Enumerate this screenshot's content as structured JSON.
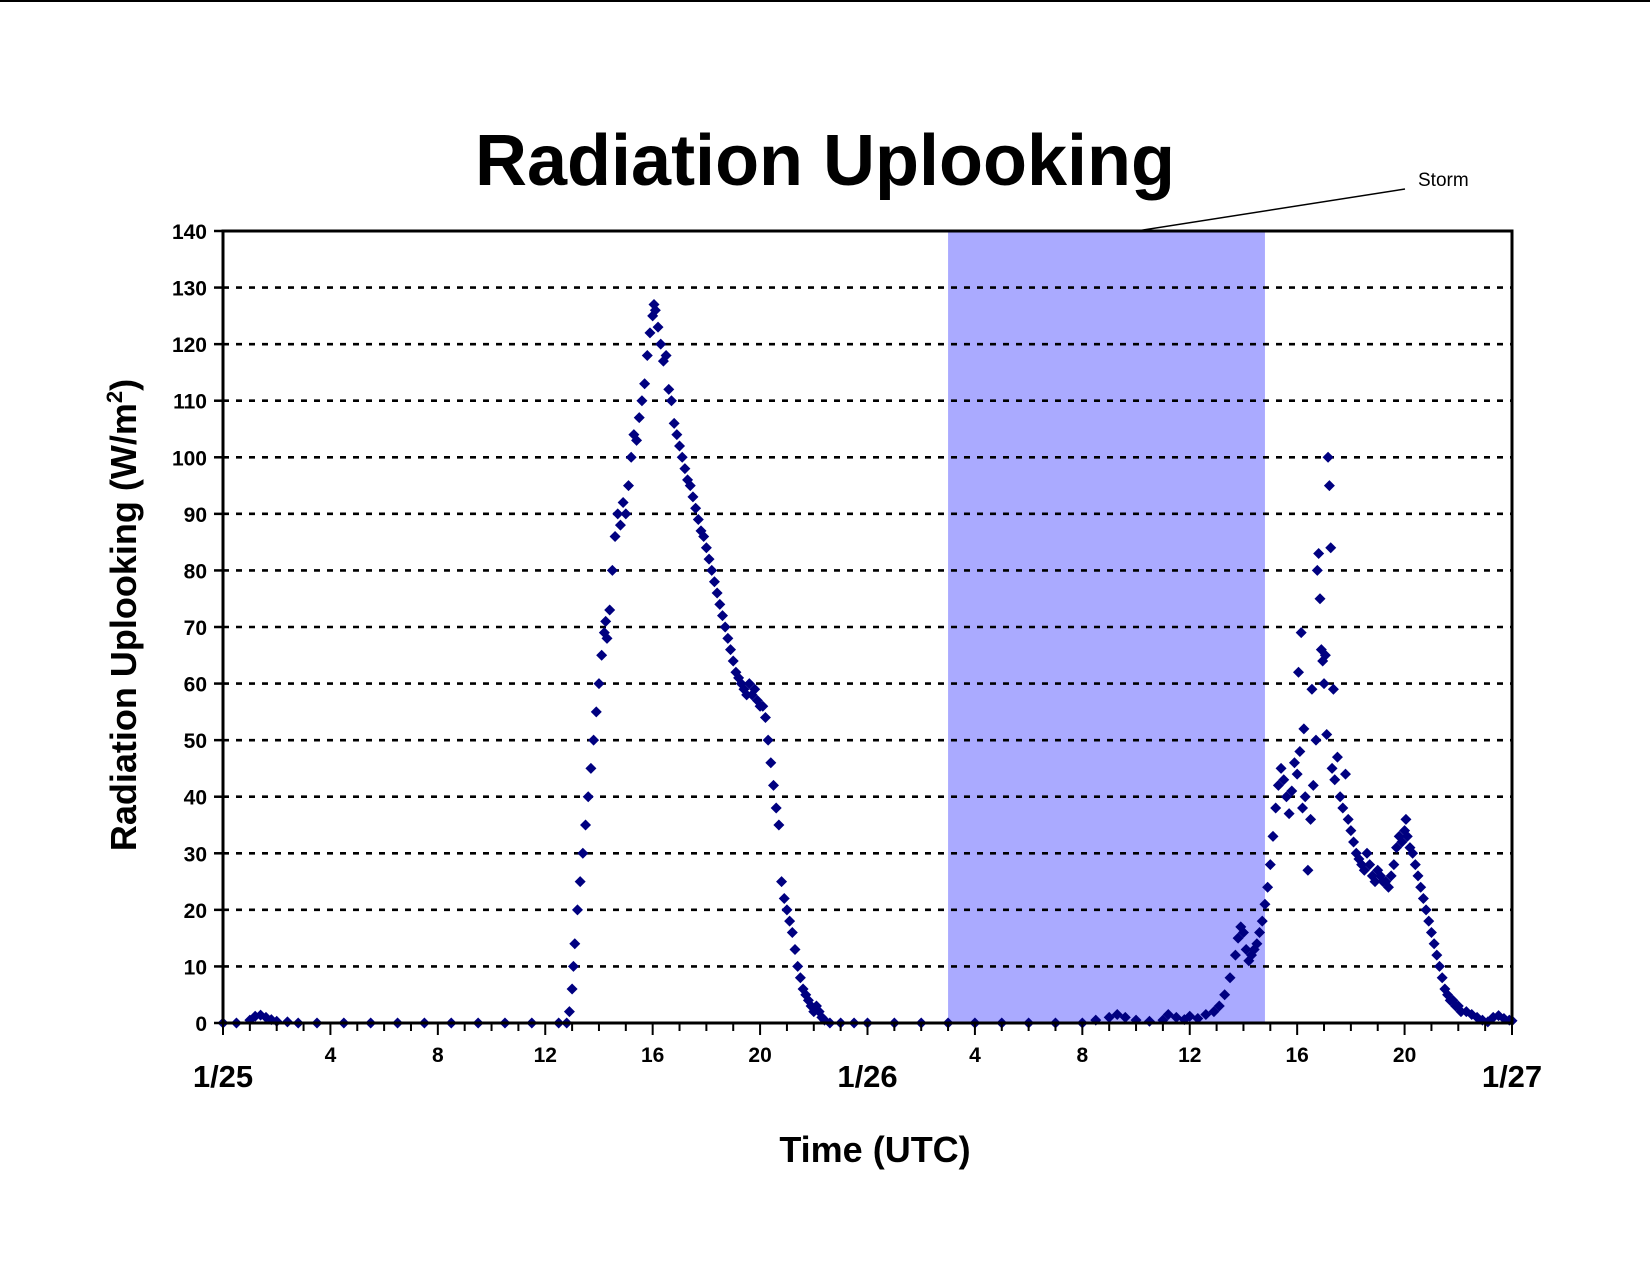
{
  "chart_data": {
    "type": "scatter",
    "title": "Radiation Uplooking",
    "xlabel": "Time (UTC)",
    "ylabel": "Radiation Uplooking (W/m",
    "ylabel_superscript": "2",
    "ylabel_close": ")",
    "x_unit": "hours since 1/25 00:00 UTC",
    "xlim": [
      0,
      48
    ],
    "ylim": [
      0,
      140
    ],
    "y_ticks": [
      0,
      10,
      20,
      30,
      40,
      50,
      60,
      70,
      80,
      90,
      100,
      110,
      120,
      130,
      140
    ],
    "x_hour_ticks": [
      {
        "x": 4,
        "label": "4"
      },
      {
        "x": 8,
        "label": "8"
      },
      {
        "x": 12,
        "label": "12"
      },
      {
        "x": 16,
        "label": "16"
      },
      {
        "x": 20,
        "label": "20"
      },
      {
        "x": 28,
        "label": "4"
      },
      {
        "x": 32,
        "label": "8"
      },
      {
        "x": 36,
        "label": "12"
      },
      {
        "x": 40,
        "label": "16"
      },
      {
        "x": 44,
        "label": "20"
      }
    ],
    "x_date_labels": [
      {
        "x": 0,
        "label": "1/25"
      },
      {
        "x": 24,
        "label": "1/26"
      },
      {
        "x": 48,
        "label": "1/27"
      }
    ],
    "grid": {
      "horizontal": true,
      "style": "dotted"
    },
    "shaded_region": {
      "label": "Storm",
      "x_start": 27.0,
      "x_end": 38.8,
      "color": "#aaaaff"
    },
    "marker_color": "#000080",
    "series": [
      {
        "points": [
          [
            0.0,
            0
          ],
          [
            0.5,
            0
          ],
          [
            1.0,
            0.5
          ],
          [
            1.2,
            1.2
          ],
          [
            1.4,
            1.4
          ],
          [
            1.6,
            1.0
          ],
          [
            1.8,
            0.6
          ],
          [
            2.0,
            0.3
          ],
          [
            2.4,
            0.2
          ],
          [
            2.8,
            0
          ],
          [
            3.5,
            0
          ],
          [
            4.5,
            0
          ],
          [
            5.5,
            0
          ],
          [
            6.5,
            0
          ],
          [
            7.5,
            0
          ],
          [
            8.5,
            0
          ],
          [
            9.5,
            0
          ],
          [
            10.5,
            0
          ],
          [
            11.5,
            0
          ],
          [
            12.5,
            0
          ],
          [
            12.8,
            0
          ],
          [
            12.9,
            2
          ],
          [
            13.0,
            6
          ],
          [
            13.05,
            10
          ],
          [
            13.1,
            14
          ],
          [
            13.2,
            20
          ],
          [
            13.3,
            25
          ],
          [
            13.4,
            30
          ],
          [
            13.5,
            35
          ],
          [
            13.6,
            40
          ],
          [
            13.7,
            45
          ],
          [
            13.8,
            50
          ],
          [
            13.9,
            55
          ],
          [
            14.0,
            60
          ],
          [
            14.1,
            65
          ],
          [
            14.2,
            69
          ],
          [
            14.25,
            71
          ],
          [
            14.3,
            68
          ],
          [
            14.4,
            73
          ],
          [
            14.5,
            80
          ],
          [
            14.6,
            86
          ],
          [
            14.7,
            90
          ],
          [
            14.8,
            88
          ],
          [
            14.9,
            92
          ],
          [
            15.0,
            90
          ],
          [
            15.1,
            95
          ],
          [
            15.2,
            100
          ],
          [
            15.3,
            104
          ],
          [
            15.4,
            103
          ],
          [
            15.5,
            107
          ],
          [
            15.6,
            110
          ],
          [
            15.7,
            113
          ],
          [
            15.8,
            118
          ],
          [
            15.9,
            122
          ],
          [
            16.0,
            125
          ],
          [
            16.05,
            127
          ],
          [
            16.1,
            126
          ],
          [
            16.2,
            123
          ],
          [
            16.3,
            120
          ],
          [
            16.4,
            117
          ],
          [
            16.5,
            118
          ],
          [
            16.6,
            112
          ],
          [
            16.7,
            110
          ],
          [
            16.8,
            106
          ],
          [
            16.9,
            104
          ],
          [
            17.0,
            102
          ],
          [
            17.1,
            100
          ],
          [
            17.2,
            98
          ],
          [
            17.3,
            96
          ],
          [
            17.4,
            95
          ],
          [
            17.5,
            93
          ],
          [
            17.6,
            91
          ],
          [
            17.7,
            89
          ],
          [
            17.8,
            87
          ],
          [
            17.9,
            86
          ],
          [
            18.0,
            84
          ],
          [
            18.1,
            82
          ],
          [
            18.2,
            80
          ],
          [
            18.3,
            78
          ],
          [
            18.4,
            76
          ],
          [
            18.5,
            74
          ],
          [
            18.6,
            72
          ],
          [
            18.7,
            70
          ],
          [
            18.8,
            68
          ],
          [
            18.9,
            66
          ],
          [
            19.0,
            64
          ],
          [
            19.1,
            62
          ],
          [
            19.2,
            61
          ],
          [
            19.3,
            60
          ],
          [
            19.4,
            59
          ],
          [
            19.5,
            58
          ],
          [
            19.6,
            60
          ],
          [
            19.7,
            58
          ],
          [
            19.8,
            59
          ],
          [
            19.9,
            57
          ],
          [
            20.0,
            56
          ],
          [
            20.1,
            56
          ],
          [
            20.2,
            54
          ],
          [
            20.3,
            50
          ],
          [
            20.4,
            46
          ],
          [
            20.5,
            42
          ],
          [
            20.6,
            38
          ],
          [
            20.7,
            35
          ],
          [
            20.8,
            25
          ],
          [
            20.9,
            22
          ],
          [
            21.0,
            20
          ],
          [
            21.1,
            18
          ],
          [
            21.2,
            16
          ],
          [
            21.3,
            13
          ],
          [
            21.4,
            10
          ],
          [
            21.5,
            8
          ],
          [
            21.6,
            6
          ],
          [
            21.7,
            5
          ],
          [
            21.8,
            4
          ],
          [
            21.9,
            3
          ],
          [
            22.0,
            2
          ],
          [
            22.1,
            3
          ],
          [
            22.2,
            2
          ],
          [
            22.3,
            1
          ],
          [
            22.4,
            0.5
          ],
          [
            22.6,
            0
          ],
          [
            23.0,
            0
          ],
          [
            23.5,
            0
          ],
          [
            24.0,
            0
          ],
          [
            25.0,
            0
          ],
          [
            26.0,
            0
          ],
          [
            27.0,
            0
          ],
          [
            28.0,
            0
          ],
          [
            29.0,
            0
          ],
          [
            30.0,
            0
          ],
          [
            31.0,
            0
          ],
          [
            32.0,
            0
          ],
          [
            32.5,
            0.5
          ],
          [
            33.0,
            1.0
          ],
          [
            33.3,
            1.5
          ],
          [
            33.6,
            1.0
          ],
          [
            34.0,
            0.5
          ],
          [
            34.5,
            0.3
          ],
          [
            35.0,
            0.5
          ],
          [
            35.2,
            1.5
          ],
          [
            35.5,
            1.0
          ],
          [
            35.8,
            0.6
          ],
          [
            36.0,
            1.2
          ],
          [
            36.3,
            0.8
          ],
          [
            36.6,
            1.5
          ],
          [
            36.9,
            2.0
          ],
          [
            37.1,
            3.0
          ],
          [
            37.3,
            5.0
          ],
          [
            37.5,
            8.0
          ],
          [
            37.7,
            12.0
          ],
          [
            37.8,
            15.0
          ],
          [
            37.9,
            17.0
          ],
          [
            38.0,
            16.0
          ],
          [
            38.1,
            13.0
          ],
          [
            38.2,
            11.0
          ],
          [
            38.3,
            12.0
          ],
          [
            38.4,
            13.0
          ],
          [
            38.5,
            14.0
          ],
          [
            38.6,
            16.0
          ],
          [
            38.7,
            18.0
          ],
          [
            38.8,
            21.0
          ],
          [
            38.9,
            24.0
          ],
          [
            39.0,
            28.0
          ],
          [
            39.1,
            33.0
          ],
          [
            39.2,
            38.0
          ],
          [
            39.3,
            42.0
          ],
          [
            39.4,
            45.0
          ],
          [
            39.5,
            43.0
          ],
          [
            39.6,
            40.0
          ],
          [
            39.7,
            37.0
          ],
          [
            39.8,
            41.0
          ],
          [
            39.9,
            46.0
          ],
          [
            40.0,
            44.0
          ],
          [
            40.05,
            62.0
          ],
          [
            40.1,
            48.0
          ],
          [
            40.15,
            69.0
          ],
          [
            40.2,
            38.0
          ],
          [
            40.25,
            52.0
          ],
          [
            40.3,
            40.0
          ],
          [
            40.4,
            27.0
          ],
          [
            40.5,
            36.0
          ],
          [
            40.55,
            59.0
          ],
          [
            40.6,
            42.0
          ],
          [
            40.7,
            50.0
          ],
          [
            40.75,
            80.0
          ],
          [
            40.8,
            83.0
          ],
          [
            40.85,
            75.0
          ],
          [
            40.9,
            66.0
          ],
          [
            40.95,
            64.0
          ],
          [
            41.0,
            60.0
          ],
          [
            41.05,
            65.0
          ],
          [
            41.1,
            51.0
          ],
          [
            41.15,
            100.0
          ],
          [
            41.2,
            95.0
          ],
          [
            41.25,
            84.0
          ],
          [
            41.3,
            45.0
          ],
          [
            41.35,
            59.0
          ],
          [
            41.4,
            43.0
          ],
          [
            41.5,
            47.0
          ],
          [
            41.6,
            40.0
          ],
          [
            41.7,
            38.0
          ],
          [
            41.8,
            44.0
          ],
          [
            41.9,
            36.0
          ],
          [
            42.0,
            34.0
          ],
          [
            42.1,
            32.0
          ],
          [
            42.2,
            30.0
          ],
          [
            42.3,
            29.0
          ],
          [
            42.4,
            28.0
          ],
          [
            42.5,
            27.0
          ],
          [
            42.6,
            30.0
          ],
          [
            42.7,
            28.0
          ],
          [
            42.8,
            26.0
          ],
          [
            42.9,
            25.0
          ],
          [
            43.0,
            27.0
          ],
          [
            43.1,
            26.0
          ],
          [
            43.2,
            25.0
          ],
          [
            43.3,
            25.0
          ],
          [
            43.4,
            24.0
          ],
          [
            43.5,
            26.0
          ],
          [
            43.6,
            28.0
          ],
          [
            43.7,
            31.0
          ],
          [
            43.8,
            33.0
          ],
          [
            43.9,
            32.0
          ],
          [
            44.0,
            34.0
          ],
          [
            44.05,
            36.0
          ],
          [
            44.1,
            33.0
          ],
          [
            44.2,
            31.0
          ],
          [
            44.3,
            30.0
          ],
          [
            44.4,
            28.0
          ],
          [
            44.5,
            26.0
          ],
          [
            44.6,
            24.0
          ],
          [
            44.7,
            22.0
          ],
          [
            44.8,
            20.0
          ],
          [
            44.9,
            18.0
          ],
          [
            45.0,
            16.0
          ],
          [
            45.1,
            14.0
          ],
          [
            45.2,
            12.0
          ],
          [
            45.3,
            10.0
          ],
          [
            45.4,
            8.0
          ],
          [
            45.5,
            6.0
          ],
          [
            45.6,
            5.0
          ],
          [
            45.7,
            4.0
          ],
          [
            45.8,
            4.0
          ],
          [
            45.9,
            3.0
          ],
          [
            46.0,
            3.0
          ],
          [
            46.1,
            2.0
          ],
          [
            46.3,
            2.0
          ],
          [
            46.5,
            1.5
          ],
          [
            46.7,
            1.0
          ],
          [
            46.9,
            0.5
          ],
          [
            47.1,
            0.2
          ],
          [
            47.3,
            1.0
          ],
          [
            47.5,
            1.3
          ],
          [
            47.7,
            0.8
          ],
          [
            47.9,
            0.5
          ],
          [
            48.0,
            0.4
          ]
        ]
      }
    ]
  }
}
